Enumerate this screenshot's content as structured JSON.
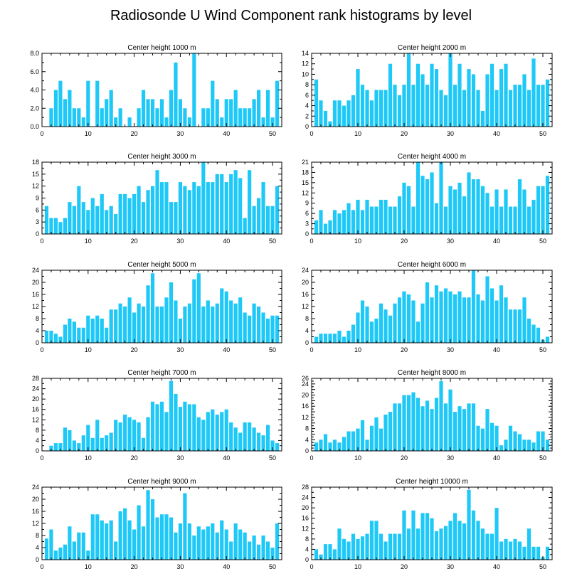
{
  "figure_title": "Radiosonde U Wind Component rank histograms by level",
  "style": {
    "bar_color": "#1ec8f7",
    "axis_color": "#000000"
  },
  "chart_data": [
    {
      "type": "bar",
      "title": "Center height 1000 m",
      "xlabel": "",
      "ylabel": "",
      "xlim": [
        0,
        52
      ],
      "ylim": [
        0,
        8
      ],
      "x_ticks": [
        0,
        10,
        20,
        30,
        40,
        50
      ],
      "y_ticks": [
        0,
        2,
        4,
        6,
        8
      ],
      "y_tick_labels": [
        "0.0",
        "2.0",
        "4.0",
        "6.0",
        "8.0"
      ],
      "values": [
        0,
        2,
        4,
        5,
        3,
        4,
        2,
        2,
        1,
        5,
        0,
        5,
        2,
        3,
        4,
        1,
        2,
        0,
        1,
        0,
        2,
        4,
        3,
        3,
        2,
        3,
        1,
        4,
        7,
        3,
        2,
        1,
        8,
        0,
        2,
        2,
        5,
        3,
        1,
        3,
        3,
        4,
        2,
        2,
        2,
        3,
        4,
        1,
        4,
        1,
        5
      ]
    },
    {
      "type": "bar",
      "title": "Center height 2000 m",
      "xlabel": "",
      "ylabel": "",
      "xlim": [
        0,
        52
      ],
      "ylim": [
        0,
        14
      ],
      "x_ticks": [
        0,
        10,
        20,
        30,
        40,
        50
      ],
      "y_ticks": [
        0,
        2,
        4,
        6,
        8,
        10,
        12,
        14
      ],
      "y_tick_labels": [
        "0",
        "2",
        "4",
        "6",
        "8",
        "10",
        "12",
        "14"
      ],
      "values": [
        9,
        5,
        3,
        1,
        5,
        5,
        4,
        5,
        6,
        11,
        8,
        7,
        5,
        7,
        7,
        7,
        12,
        8,
        6,
        8,
        14,
        8,
        12,
        10,
        8,
        12,
        11,
        7,
        6,
        14,
        8,
        12,
        7,
        11,
        10,
        7,
        3,
        10,
        12,
        7,
        11,
        12,
        7,
        8,
        8,
        10,
        7,
        13,
        8,
        8,
        9
      ]
    },
    {
      "type": "bar",
      "title": "Center height 3000 m",
      "xlabel": "",
      "ylabel": "",
      "xlim": [
        0,
        52
      ],
      "ylim": [
        0,
        18
      ],
      "x_ticks": [
        0,
        10,
        20,
        30,
        40,
        50
      ],
      "y_ticks": [
        0,
        3,
        6,
        9,
        12,
        15,
        18
      ],
      "y_tick_labels": [
        "0",
        "3",
        "6",
        "9",
        "12",
        "15",
        "18"
      ],
      "values": [
        7,
        4,
        4,
        3,
        4,
        8,
        7,
        12,
        8,
        6,
        9,
        7,
        10,
        6,
        7,
        5,
        10,
        10,
        9,
        10,
        12,
        8,
        11,
        12,
        16,
        13,
        13,
        8,
        8,
        13,
        12,
        11,
        13,
        12,
        18,
        13,
        13,
        15,
        15,
        13,
        15,
        16,
        14,
        4,
        16,
        7,
        9,
        13,
        7,
        7,
        12
      ]
    },
    {
      "type": "bar",
      "title": "Center height 4000 m",
      "xlabel": "",
      "ylabel": "",
      "xlim": [
        0,
        52
      ],
      "ylim": [
        0,
        21
      ],
      "x_ticks": [
        0,
        10,
        20,
        30,
        40,
        50
      ],
      "y_ticks": [
        0,
        3,
        6,
        9,
        12,
        15,
        18,
        21
      ],
      "y_tick_labels": [
        "0",
        "3",
        "6",
        "9",
        "12",
        "15",
        "18",
        "21"
      ],
      "values": [
        4,
        7,
        3,
        4,
        7,
        6,
        7,
        9,
        7,
        10,
        7,
        10,
        8,
        8,
        10,
        10,
        8,
        8,
        11,
        15,
        14,
        8,
        21,
        17,
        16,
        18,
        9,
        21,
        8,
        14,
        13,
        15,
        11,
        18,
        16,
        16,
        14,
        12,
        8,
        13,
        8,
        13,
        8,
        8,
        16,
        13,
        8,
        10,
        14,
        14,
        17
      ]
    },
    {
      "type": "bar",
      "title": "Center height 5000 m",
      "xlabel": "",
      "ylabel": "",
      "xlim": [
        0,
        52
      ],
      "ylim": [
        0,
        24
      ],
      "x_ticks": [
        0,
        10,
        20,
        30,
        40,
        50
      ],
      "y_ticks": [
        0,
        4,
        8,
        12,
        16,
        20,
        24
      ],
      "y_tick_labels": [
        "0",
        "4",
        "8",
        "12",
        "16",
        "20",
        "24"
      ],
      "values": [
        4,
        4,
        3,
        2,
        6,
        8,
        7,
        5,
        5,
        9,
        8,
        9,
        8,
        5,
        11,
        11,
        13,
        12,
        15,
        10,
        13,
        12,
        19,
        23,
        12,
        12,
        15,
        20,
        14,
        8,
        12,
        13,
        21,
        23,
        12,
        14,
        12,
        13,
        18,
        17,
        14,
        13,
        15,
        10,
        9,
        13,
        12,
        10,
        8,
        9,
        9
      ]
    },
    {
      "type": "bar",
      "title": "Center height 6000 m",
      "xlabel": "",
      "ylabel": "",
      "xlim": [
        0,
        52
      ],
      "ylim": [
        0,
        24
      ],
      "x_ticks": [
        0,
        10,
        20,
        30,
        40,
        50
      ],
      "y_ticks": [
        0,
        4,
        8,
        12,
        16,
        20,
        24
      ],
      "y_tick_labels": [
        "0",
        "4",
        "8",
        "12",
        "16",
        "20",
        "24"
      ],
      "values": [
        2,
        3,
        3,
        3,
        3,
        4,
        2,
        4,
        6,
        10,
        14,
        12,
        7,
        8,
        13,
        11,
        9,
        13,
        15,
        17,
        16,
        14,
        7,
        13,
        20,
        15,
        19,
        17,
        18,
        17,
        16,
        17,
        15,
        15,
        24,
        16,
        14,
        22,
        18,
        14,
        19,
        15,
        11,
        11,
        11,
        15,
        8,
        6,
        5,
        1,
        2
      ]
    },
    {
      "type": "bar",
      "title": "Center height 7000 m",
      "xlabel": "",
      "ylabel": "",
      "xlim": [
        0,
        52
      ],
      "ylim": [
        0,
        28
      ],
      "x_ticks": [
        0,
        10,
        20,
        30,
        40,
        50
      ],
      "y_ticks": [
        0,
        4,
        8,
        12,
        16,
        20,
        24,
        28
      ],
      "y_tick_labels": [
        "0",
        "4",
        "8",
        "12",
        "16",
        "20",
        "24",
        "28"
      ],
      "values": [
        0,
        2,
        3,
        3,
        9,
        8,
        4,
        3,
        6,
        10,
        5,
        12,
        5,
        6,
        7,
        12,
        11,
        14,
        13,
        12,
        11,
        5,
        13,
        19,
        18,
        19,
        15,
        27,
        22,
        17,
        19,
        18,
        18,
        13,
        12,
        15,
        16,
        14,
        15,
        16,
        11,
        9,
        7,
        11,
        11,
        9,
        7,
        6,
        10,
        4,
        3
      ]
    },
    {
      "type": "bar",
      "title": "Center height 8000 m",
      "xlabel": "",
      "ylabel": "",
      "xlim": [
        0,
        52
      ],
      "ylim": [
        0,
        26
      ],
      "x_ticks": [
        0,
        10,
        20,
        30,
        40,
        50
      ],
      "y_ticks": [
        0,
        2,
        4,
        6,
        8,
        10,
        12,
        14,
        16,
        18,
        20,
        22,
        24,
        26
      ],
      "y_tick_labels": [
        "0",
        "",
        "4",
        "",
        "8",
        "",
        "12",
        "",
        "16",
        "",
        "20",
        "",
        "24",
        "26"
      ],
      "values": [
        3,
        4,
        6,
        3,
        4,
        3,
        5,
        7,
        7,
        8,
        11,
        4,
        9,
        12,
        8,
        13,
        14,
        17,
        17,
        20,
        20,
        21,
        19,
        16,
        18,
        15,
        19,
        25,
        17,
        22,
        14,
        16,
        15,
        17,
        17,
        9,
        8,
        15,
        10,
        9,
        2,
        4,
        9,
        7,
        6,
        4,
        4,
        3,
        7,
        7,
        4
      ]
    },
    {
      "type": "bar",
      "title": "Center height 9000 m",
      "xlabel": "",
      "ylabel": "",
      "xlim": [
        0,
        52
      ],
      "ylim": [
        0,
        24
      ],
      "x_ticks": [
        0,
        10,
        20,
        30,
        40,
        50
      ],
      "y_ticks": [
        0,
        4,
        8,
        12,
        16,
        20,
        24
      ],
      "y_tick_labels": [
        "0",
        "4",
        "8",
        "12",
        "16",
        "20",
        "24"
      ],
      "values": [
        7,
        10,
        3,
        4,
        5,
        11,
        6,
        9,
        9,
        3,
        15,
        15,
        13,
        12,
        13,
        6,
        16,
        17,
        13,
        10,
        18,
        11,
        23,
        20,
        14,
        15,
        15,
        14,
        9,
        12,
        22,
        12,
        8,
        11,
        10,
        11,
        12,
        9,
        13,
        10,
        6,
        12,
        10,
        9,
        6,
        8,
        5,
        8,
        6,
        4,
        12
      ]
    },
    {
      "type": "bar",
      "title": "Center height 10000 m",
      "xlabel": "",
      "ylabel": "",
      "xlim": [
        0,
        52
      ],
      "ylim": [
        0,
        28
      ],
      "x_ticks": [
        0,
        10,
        20,
        30,
        40,
        50
      ],
      "y_ticks": [
        0,
        4,
        8,
        12,
        16,
        20,
        24,
        28
      ],
      "y_tick_labels": [
        "0",
        "4",
        "8",
        "12",
        "16",
        "20",
        "24",
        "28"
      ],
      "values": [
        4,
        2,
        6,
        6,
        4,
        12,
        8,
        7,
        10,
        8,
        9,
        10,
        15,
        15,
        10,
        7,
        10,
        10,
        10,
        19,
        12,
        19,
        12,
        18,
        18,
        16,
        11,
        12,
        13,
        15,
        18,
        15,
        14,
        27,
        19,
        15,
        12,
        10,
        10,
        20,
        7,
        8,
        7,
        8,
        7,
        5,
        12,
        5,
        5,
        1,
        5
      ]
    }
  ]
}
